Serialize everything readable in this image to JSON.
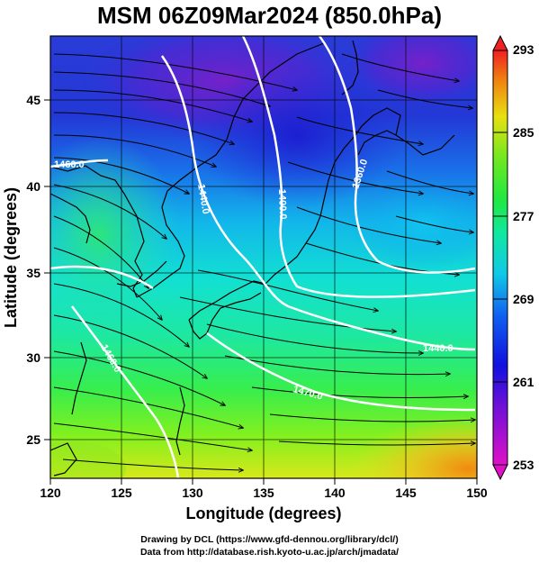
{
  "title": "MSM 06Z09Mar2024 (850.0hPa)",
  "xlabel": "Longitude (degrees)",
  "ylabel": "Latitude  (degrees)",
  "x_ticks": [
    "120",
    "125",
    "130",
    "135",
    "140",
    "145",
    "150"
  ],
  "y_ticks": [
    "25",
    "30",
    "35",
    "40",
    "45"
  ],
  "colorbar_ticks": [
    "293",
    "285",
    "277",
    "269",
    "261",
    "253"
  ],
  "contour_labels": [
    "1460.0",
    "1440.0",
    "1400.0",
    "1360.0",
    "1440.0",
    "1470.0",
    "1460.0"
  ],
  "credit_line1": "Drawing by DCL (https://www.gfd-dennou.org/library/dcl/)",
  "credit_line2": "Data from http://database.rish.kyoto-u.ac.jp/arch/jmadata/",
  "map_data": {
    "lon_range": [
      120,
      150
    ],
    "lat_range": [
      22.5,
      48
    ],
    "colorbar_range": [
      253,
      293
    ],
    "colormap": "rainbow (magenta-blue-cyan-green-yellow-red)"
  }
}
